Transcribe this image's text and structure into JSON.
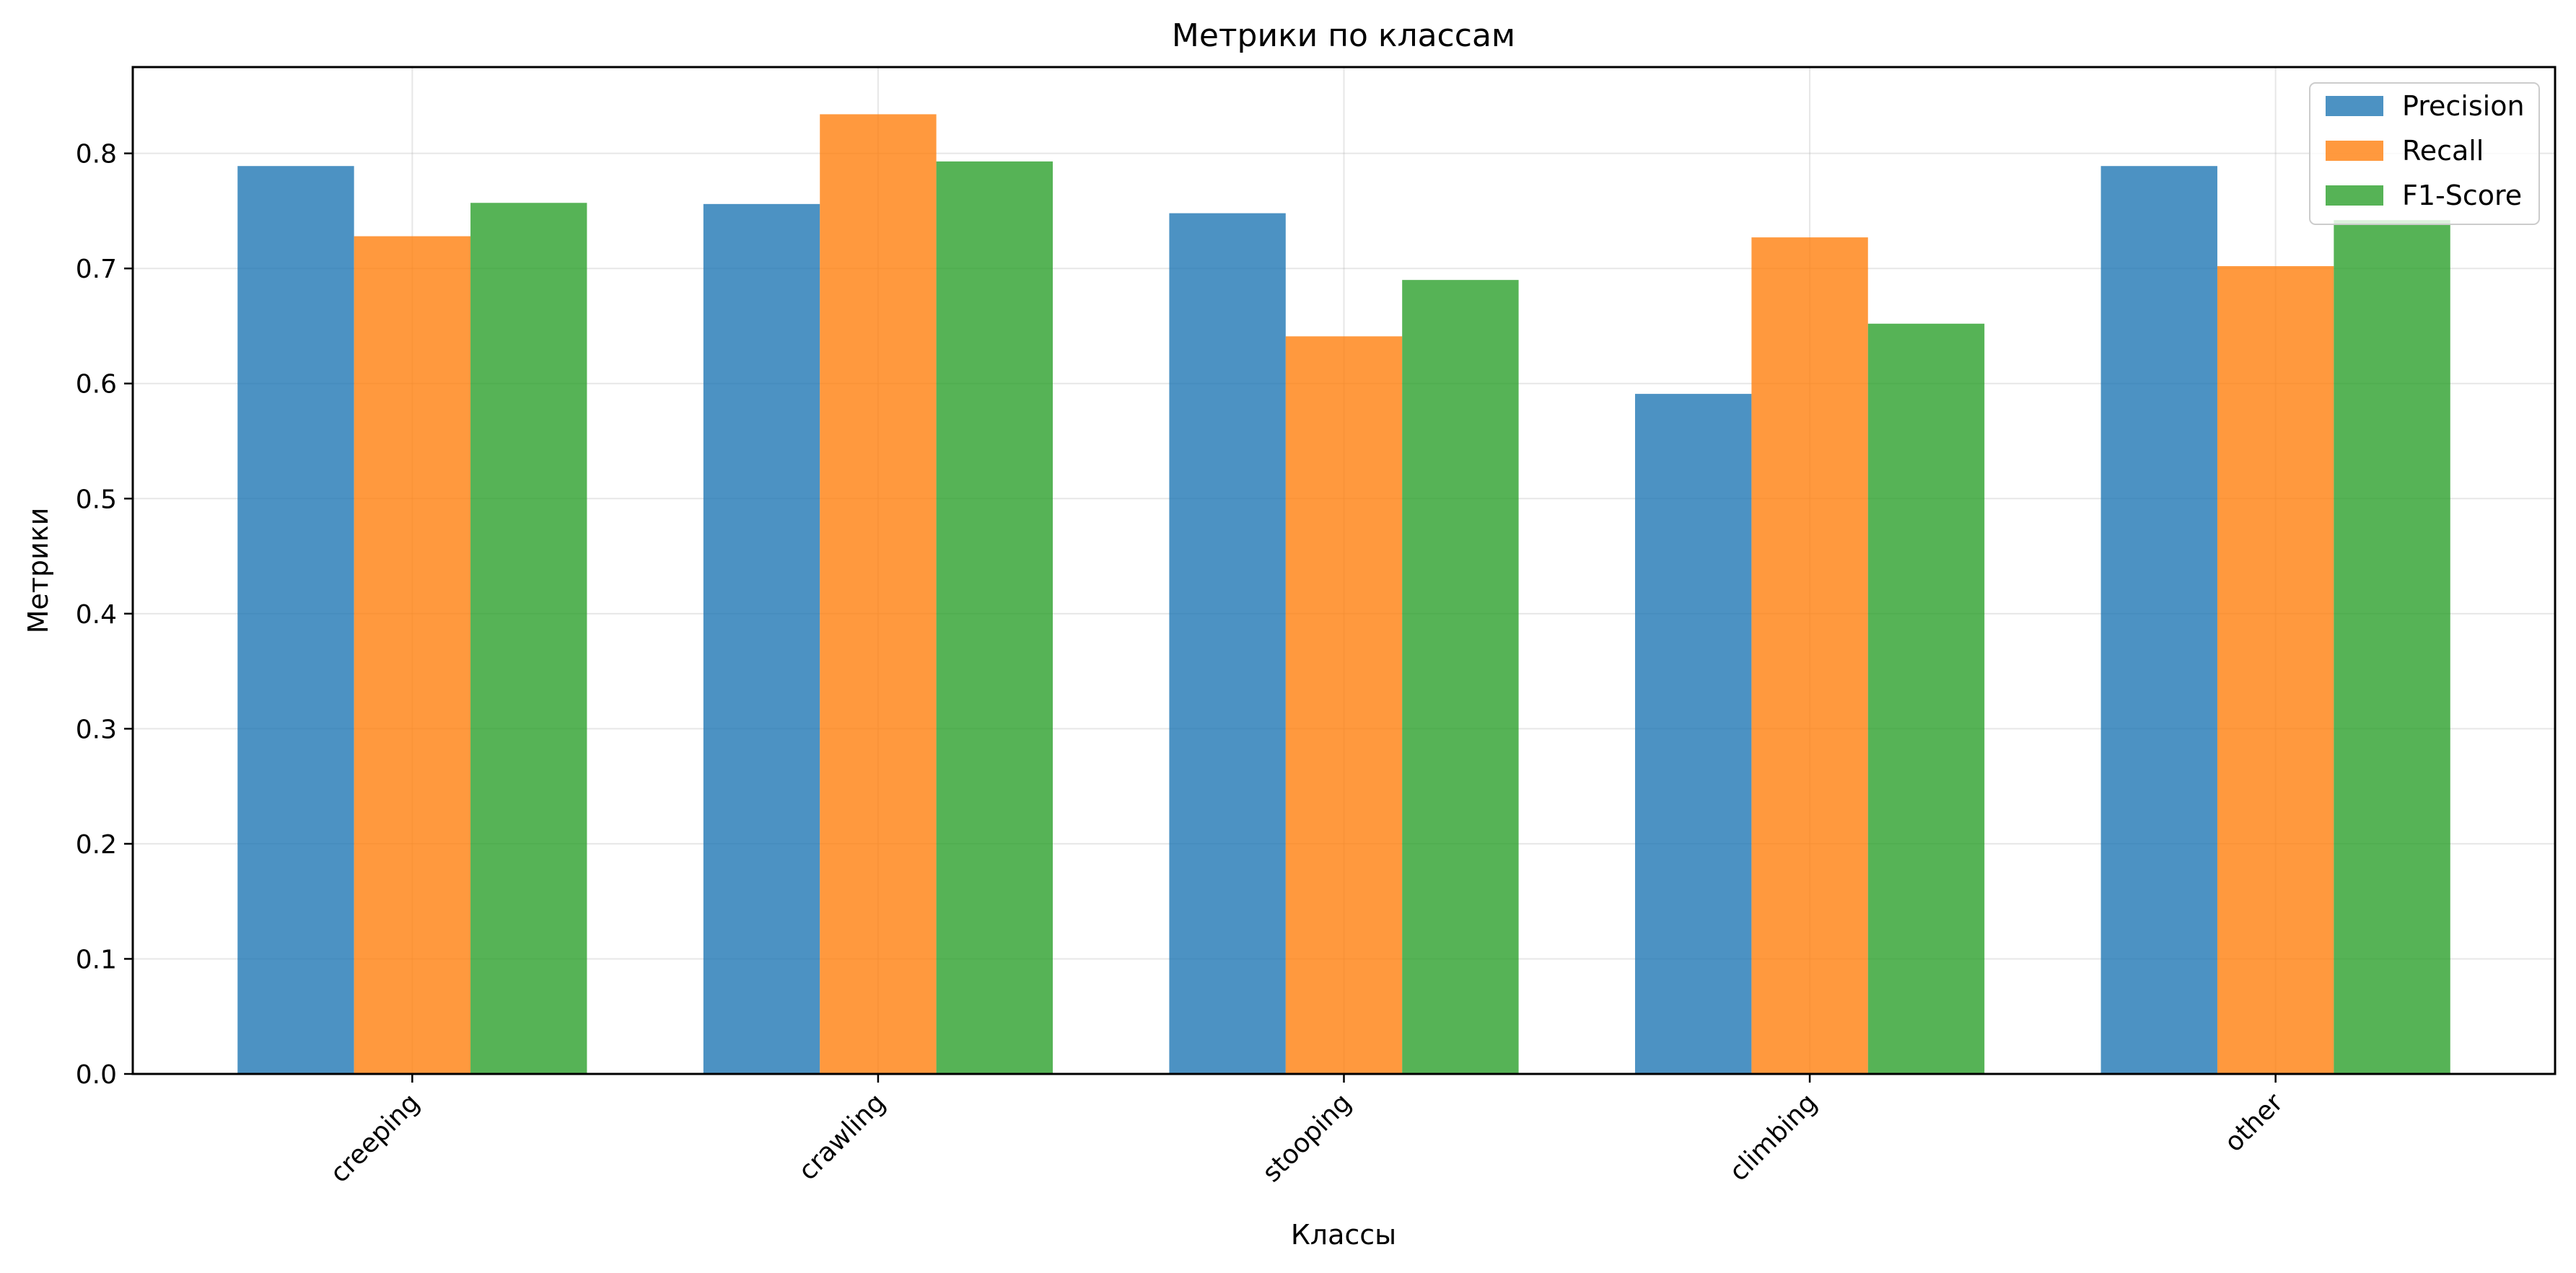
{
  "chart_data": {
    "type": "bar",
    "title": "Метрики по классам",
    "xlabel": "Классы",
    "ylabel": "Метрики",
    "categories": [
      "creeping",
      "crawling",
      "stooping",
      "climbing",
      "other"
    ],
    "series": [
      {
        "name": "Precision",
        "color": "#1f77b4",
        "values": [
          0.789,
          0.756,
          0.748,
          0.591,
          0.789
        ]
      },
      {
        "name": "Recall",
        "color": "#ff7f0e",
        "values": [
          0.728,
          0.834,
          0.641,
          0.727,
          0.702
        ]
      },
      {
        "name": "F1-Score",
        "color": "#2ca02c",
        "values": [
          0.757,
          0.793,
          0.69,
          0.652,
          0.742
        ]
      }
    ],
    "ylim": [
      0,
      0.875
    ],
    "yticks": [
      "0.0",
      "0.1",
      "0.2",
      "0.3",
      "0.4",
      "0.5",
      "0.6",
      "0.7",
      "0.8"
    ],
    "grid": true,
    "legend": "top-right",
    "bar_opacity": 0.8,
    "xtick_rotation": 45
  }
}
